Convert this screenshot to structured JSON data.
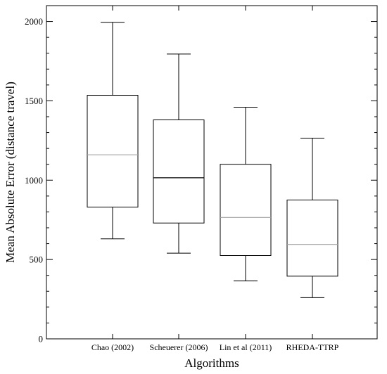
{
  "chart_data": {
    "type": "boxplot",
    "title": "",
    "xlabel": "Algorithms",
    "ylabel": "Mean Absolute Error (distance travel)",
    "ylim": [
      0,
      2100
    ],
    "yticks": [
      0,
      500,
      1000,
      1500,
      2000
    ],
    "grid": false,
    "categories": [
      "Chao (2002)",
      "Scheuerer (2006)",
      "Lin et al (2011)",
      "RHEDA-TTRP"
    ],
    "boxes": [
      {
        "category": "Chao (2002)",
        "min": 630,
        "q1": 830,
        "median": 1160,
        "q3": 1535,
        "max": 1995,
        "median_color": "#a0a0a0"
      },
      {
        "category": "Scheuerer (2006)",
        "min": 540,
        "q1": 730,
        "median": 1015,
        "q3": 1380,
        "max": 1795,
        "median_color": "#000000"
      },
      {
        "category": "Lin et al (2011)",
        "min": 365,
        "q1": 525,
        "median": 765,
        "q3": 1100,
        "max": 1460,
        "median_color": "#a0a0a0"
      },
      {
        "category": "RHEDA-TTRP",
        "min": 260,
        "q1": 395,
        "median": 595,
        "q3": 875,
        "max": 1265,
        "median_color": "#a0a0a0"
      }
    ]
  }
}
